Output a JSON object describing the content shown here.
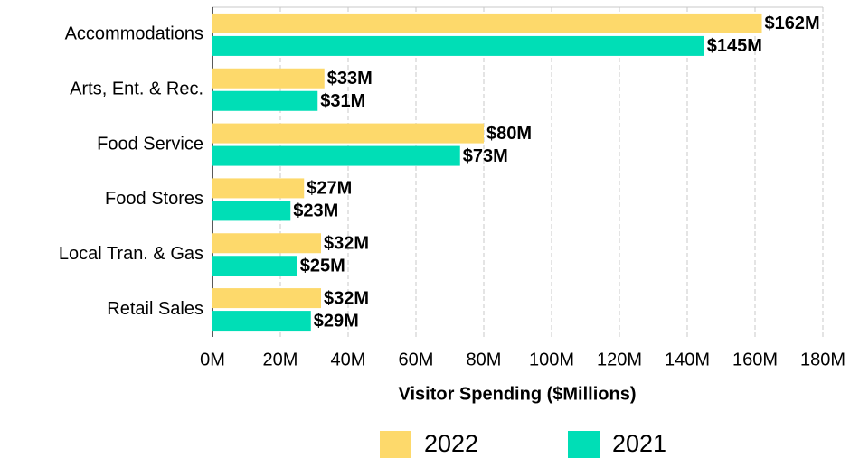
{
  "chart_data": {
    "type": "bar",
    "orientation": "horizontal",
    "x_label": "Visitor Spending ($Millions)",
    "categories": [
      "Accommodations",
      "Arts, Ent. & Rec.",
      "Food Service",
      "Food Stores",
      "Local Tran. & Gas",
      "Retail Sales"
    ],
    "series": [
      {
        "name": "2022",
        "color": "#fdd96b",
        "values": [
          162,
          33,
          80,
          27,
          32,
          32
        ],
        "value_labels": [
          "$162M",
          "$33M",
          "$80M",
          "$27M",
          "$32M",
          "$32M"
        ]
      },
      {
        "name": "2021",
        "color": "#00deb6",
        "values": [
          145,
          31,
          73,
          23,
          25,
          29
        ],
        "value_labels": [
          "$145M",
          "$31M",
          "$73M",
          "$23M",
          "$25M",
          "$29M"
        ]
      }
    ],
    "xlim": [
      0,
      180
    ],
    "xticks": [
      {
        "value": 0,
        "label": "0M"
      },
      {
        "value": 20,
        "label": "20M"
      },
      {
        "value": 40,
        "label": "40M"
      },
      {
        "value": 60,
        "label": "60M"
      },
      {
        "value": 80,
        "label": "80M"
      },
      {
        "value": 100,
        "label": "100M"
      },
      {
        "value": 120,
        "label": "120M"
      },
      {
        "value": 140,
        "label": "140M"
      },
      {
        "value": 160,
        "label": "160M"
      },
      {
        "value": 180,
        "label": "180M"
      }
    ],
    "grid": true,
    "legend": "bottom"
  }
}
